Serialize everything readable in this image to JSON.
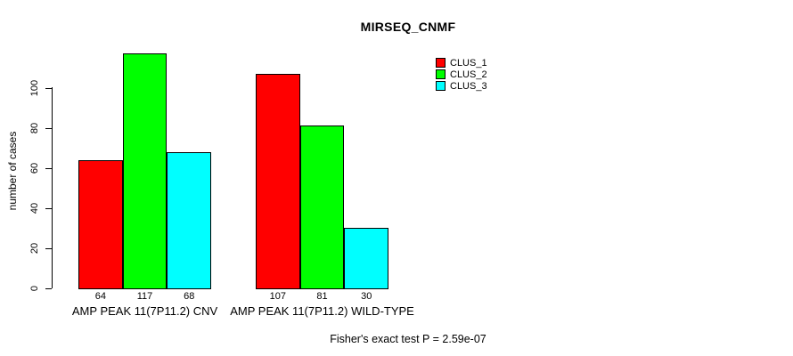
{
  "chart_data": {
    "type": "bar",
    "title": "MIRSEQ_CNMF",
    "ylabel": "number of cases",
    "xlabel": "",
    "ylim": [
      0,
      120
    ],
    "yticks": [
      0,
      20,
      40,
      60,
      80,
      100
    ],
    "grid": false,
    "categories": [
      "AMP PEAK 11(7P11.2) CNV",
      "AMP PEAK 11(7P11.2) WILD-TYPE"
    ],
    "series": [
      {
        "name": "CLUS_1",
        "color": "#FF0000",
        "values": [
          64,
          107
        ]
      },
      {
        "name": "CLUS_2",
        "color": "#00FF00",
        "values": [
          117,
          81
        ]
      },
      {
        "name": "CLUS_3",
        "color": "#00FFFF",
        "values": [
          68,
          30
        ]
      }
    ],
    "show_bar_values": true,
    "bar_border_color": "#000000",
    "legend_position": "top-right",
    "annotation": "Fisher's exact test P = 2.59e-07"
  }
}
